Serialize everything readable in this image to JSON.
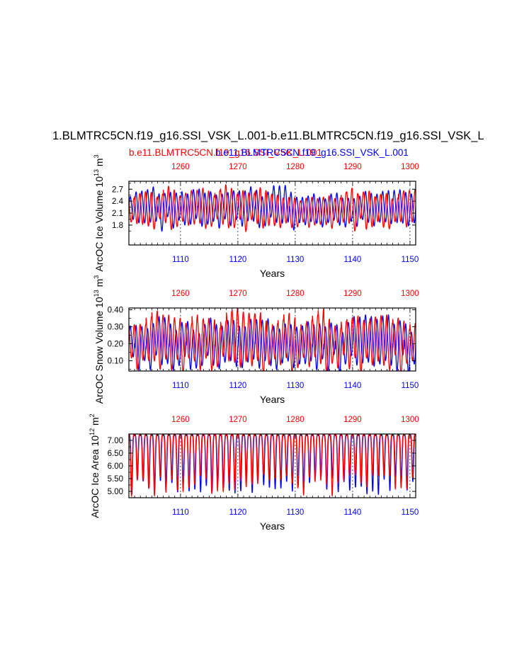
{
  "title": "1.BLMTRC5CN.f19_g16.SSI_VSK_L.001-b.e11.BLMTRC5CN.f19_g16.SSI_VSK_L",
  "legend": {
    "red_case": "b.e11.BLMTRC5CN.f19_g16.SSI_VSK_L.001",
    "blue_case": "b.e11.BLMTRC5CN.f19_g16.SSI_VSK_L.001",
    "red_color": "#ff0000",
    "blue_color": "#0000ff"
  },
  "chart_data": [
    {
      "type": "line",
      "name": "ice-volume",
      "ylabel": "ArcOC Ice Volume 10^13 m^3",
      "xlabel": "Years",
      "ylim": [
        1.3,
        2.9
      ],
      "yticks": [
        1.8,
        2.1,
        2.4,
        2.7
      ],
      "ytick_labels": [
        "1.8",
        "2.1",
        "2.4",
        "2.7"
      ],
      "bottom_axis": {
        "range": [
          1101,
          1151
        ],
        "ticks": [
          1110,
          1120,
          1130,
          1140,
          1150
        ],
        "color": "#0000ff"
      },
      "top_axis": {
        "range": [
          1251,
          1301
        ],
        "ticks": [
          1260,
          1270,
          1280,
          1290,
          1300
        ],
        "color": "#ff0000"
      },
      "series": [
        {
          "name": "blue",
          "color": "#0000ff",
          "cycle_mean": 2.22,
          "cycle_amplitude": 0.38,
          "phase": 0.0
        },
        {
          "name": "red",
          "color": "#ff0000",
          "cycle_mean": 2.2,
          "cycle_amplitude": 0.4,
          "phase": 0.35
        }
      ]
    },
    {
      "type": "line",
      "name": "snow-volume",
      "ylabel": "ArcOC Snow Volume 10^13 m^3",
      "xlabel": "Years",
      "ylim": [
        0.04,
        0.41
      ],
      "yticks": [
        0.1,
        0.2,
        0.3,
        0.4
      ],
      "ytick_labels": [
        "0.10",
        "0.20",
        "0.30",
        "0.40"
      ],
      "bottom_axis": {
        "range": [
          1101,
          1151
        ],
        "ticks": [
          1110,
          1120,
          1130,
          1140,
          1150
        ],
        "color": "#0000ff"
      },
      "top_axis": {
        "range": [
          1251,
          1301
        ],
        "ticks": [
          1260,
          1270,
          1280,
          1290,
          1300
        ],
        "color": "#ff0000"
      },
      "series": [
        {
          "name": "blue",
          "color": "#0000ff",
          "cycle_mean": 0.2,
          "cycle_amplitude": 0.12,
          "phase": 0.0
        },
        {
          "name": "red",
          "color": "#ff0000",
          "cycle_mean": 0.21,
          "cycle_amplitude": 0.13,
          "phase": 0.3
        }
      ]
    },
    {
      "type": "line",
      "name": "ice-area",
      "ylabel": "ArcOC Ice Area 10^12 m^2",
      "xlabel": "Years",
      "ylim": [
        4.75,
        7.25
      ],
      "yticks": [
        5.0,
        5.5,
        6.0,
        6.5,
        7.0
      ],
      "ytick_labels": [
        "5.00",
        "5.50",
        "6.00",
        "6.50",
        "7.00"
      ],
      "bottom_axis": {
        "range": [
          1101,
          1151
        ],
        "ticks": [
          1110,
          1120,
          1130,
          1140,
          1150
        ],
        "color": "#0000ff"
      },
      "top_axis": {
        "range": [
          1251,
          1301
        ],
        "ticks": [
          1260,
          1270,
          1280,
          1290,
          1300
        ],
        "color": "#ff0000"
      },
      "series": [
        {
          "name": "blue",
          "color": "#0000ff",
          "cycle_max": 7.22,
          "cycle_min_range": [
            4.85,
            5.6
          ],
          "phase": 0.0
        },
        {
          "name": "red",
          "color": "#ff0000",
          "cycle_max": 7.22,
          "cycle_min_range": [
            4.8,
            5.7
          ],
          "phase": 0.05
        }
      ]
    }
  ]
}
